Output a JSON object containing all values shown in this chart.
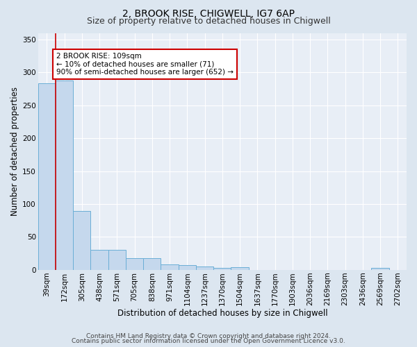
{
  "title1": "2, BROOK RISE, CHIGWELL, IG7 6AP",
  "title2": "Size of property relative to detached houses in Chigwell",
  "xlabel": "Distribution of detached houses by size in Chigwell",
  "ylabel": "Number of detached properties",
  "categories": [
    "39sqm",
    "172sqm",
    "305sqm",
    "438sqm",
    "571sqm",
    "705sqm",
    "838sqm",
    "971sqm",
    "1104sqm",
    "1237sqm",
    "1370sqm",
    "1504sqm",
    "1637sqm",
    "1770sqm",
    "1903sqm",
    "2036sqm",
    "2169sqm",
    "2303sqm",
    "2436sqm",
    "2569sqm",
    "2702sqm"
  ],
  "values": [
    284,
    288,
    89,
    30,
    30,
    18,
    18,
    8,
    7,
    5,
    3,
    4,
    0,
    0,
    0,
    0,
    0,
    0,
    0,
    3,
    0
  ],
  "bar_color": "#c5d8ed",
  "bar_edge_color": "#6aaed6",
  "background_color": "#e8eef6",
  "grid_color": "#ffffff",
  "annotation_text": "2 BROOK RISE: 109sqm\n← 10% of detached houses are smaller (71)\n90% of semi-detached houses are larger (652) →",
  "annotation_box_color": "#ffffff",
  "annotation_box_edge": "#cc0000",
  "marker_line_color": "#cc0000",
  "ylim": [
    0,
    360
  ],
  "yticks": [
    0,
    50,
    100,
    150,
    200,
    250,
    300,
    350
  ],
  "footer1": "Contains HM Land Registry data © Crown copyright and database right 2024.",
  "footer2": "Contains public sector information licensed under the Open Government Licence v3.0.",
  "title1_fontsize": 10,
  "title2_fontsize": 9,
  "axis_fontsize": 8.5,
  "tick_fontsize": 7.5,
  "annotation_fontsize": 7.5,
  "footer_fontsize": 6.5
}
